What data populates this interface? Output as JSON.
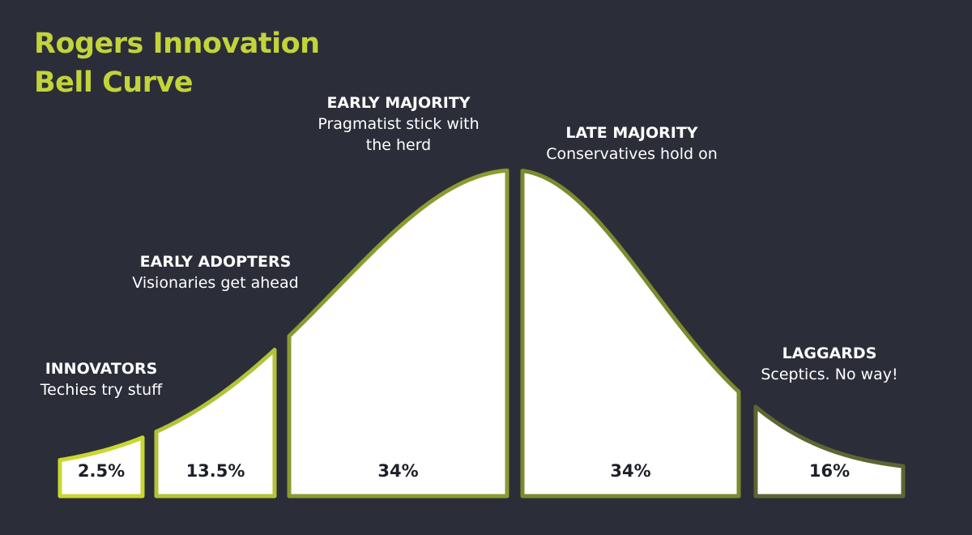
{
  "chart_data": {
    "type": "bell",
    "title": "Rogers Innovation Bell Curve",
    "categories": [
      "INNOVATORS",
      "EARLY ADOPTERS",
      "EARLY MAJORITY",
      "LATE MAJORITY",
      "LAGGARDS"
    ],
    "descriptions": [
      "Techies try stuff",
      "Visionaries get ahead",
      "Pragmatist stick with the herd",
      "Conservatives hold on",
      "Sceptics. No way!"
    ],
    "values": [
      2.5,
      13.5,
      34,
      34,
      16
    ],
    "value_labels": [
      "2.5%",
      "13.5%",
      "34%",
      "34%",
      "16%"
    ],
    "colors": [
      "#c9d72f",
      "#b3c336",
      "#8b9b30",
      "#7b8b2d",
      "#5d6631"
    ]
  }
}
